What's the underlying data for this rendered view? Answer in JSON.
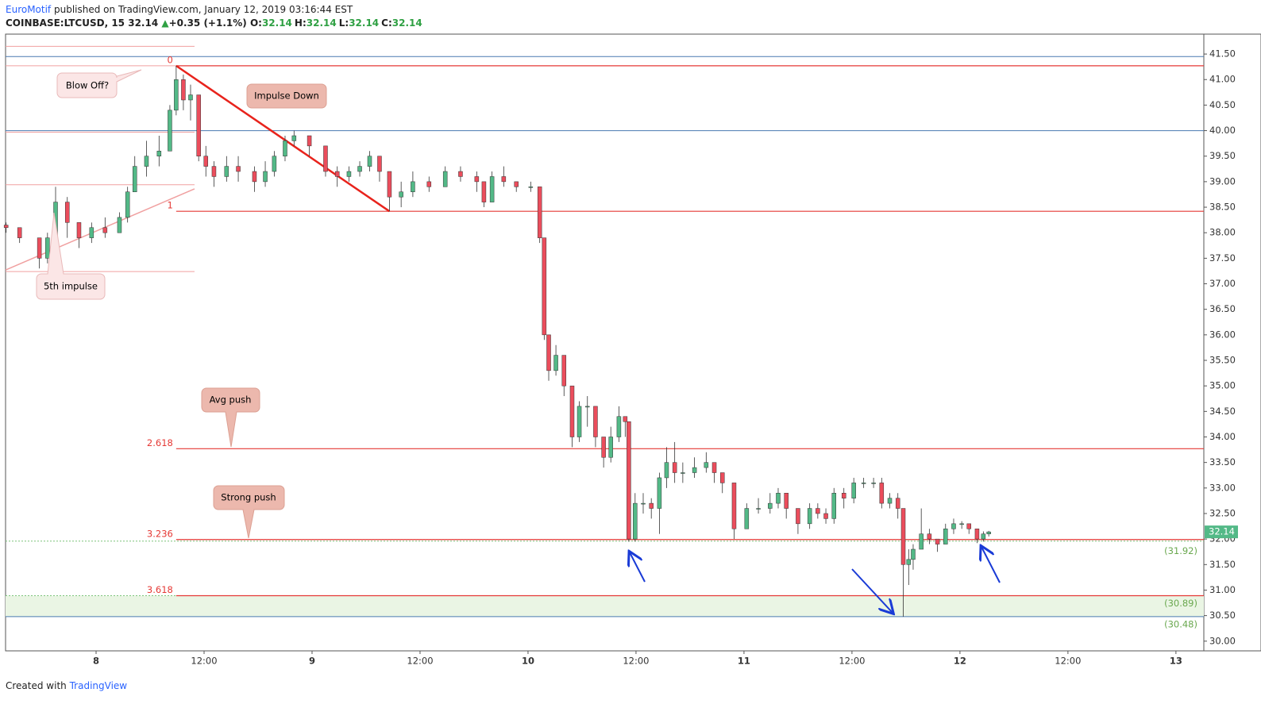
{
  "header": {
    "author": "EuroMotif",
    "published": "published on TradingView.com, January 12, 2019 03:16:44 EST",
    "symbol": "COINBASE:LTCUSD, 15",
    "last": "32.14",
    "change": "+0.35 (+1.1%)",
    "ohlc": [
      {
        "k": "O:",
        "v": "32.14"
      },
      {
        "k": "H:",
        "v": "32.14"
      },
      {
        "k": "L:",
        "v": "32.14"
      },
      {
        "k": "C:",
        "v": "32.14"
      }
    ]
  },
  "footer": {
    "created": "Created with",
    "brand": "TradingView"
  },
  "annotations": [
    "Blow Off?",
    "Impulse Down",
    "5th impulse",
    "Avg push",
    "Strong push"
  ],
  "chart_data": {
    "type": "candlestick",
    "up_color": "#53b987",
    "down_color": "#eb4d5c",
    "xlim": [
      -10.06,
      123.1
    ],
    "ylim": [
      29.81,
      41.89
    ],
    "xticks": [
      {
        "value": 0,
        "label": "8"
      },
      {
        "value": 12,
        "label": "12:00"
      },
      {
        "value": 24,
        "label": "9"
      },
      {
        "value": 36,
        "label": "12:00"
      },
      {
        "value": 48,
        "label": "10"
      },
      {
        "value": 60,
        "label": "12:00"
      },
      {
        "value": 72,
        "label": "11"
      },
      {
        "value": 84,
        "label": "12:00"
      },
      {
        "value": 96,
        "label": "12"
      },
      {
        "value": 108,
        "label": "12:00"
      },
      {
        "value": 120,
        "label": "13"
      }
    ],
    "yticks": [
      {
        "value": 30,
        "label": "30.00"
      },
      {
        "value": 30.5,
        "label": "30.50"
      },
      {
        "value": 31,
        "label": "31.00"
      },
      {
        "value": 31.5,
        "label": "31.50"
      },
      {
        "value": 32,
        "label": "32.00"
      },
      {
        "value": 32.5,
        "label": "32.50"
      },
      {
        "value": 33,
        "label": "33.00"
      },
      {
        "value": 33.5,
        "label": "33.50"
      },
      {
        "value": 34,
        "label": "34.00"
      },
      {
        "value": 34.5,
        "label": "34.50"
      },
      {
        "value": 35,
        "label": "35.00"
      },
      {
        "value": 35.5,
        "label": "35.50"
      },
      {
        "value": 36,
        "label": "36.00"
      },
      {
        "value": 36.5,
        "label": "36.50"
      },
      {
        "value": 37,
        "label": "37.00"
      },
      {
        "value": 37.5,
        "label": "37.50"
      },
      {
        "value": 38,
        "label": "38.00"
      },
      {
        "value": 38.5,
        "label": "38.50"
      },
      {
        "value": 39,
        "label": "39.00"
      },
      {
        "value": 39.5,
        "label": "39.50"
      },
      {
        "value": 40,
        "label": "40.00"
      },
      {
        "value": 40.5,
        "label": "40.50"
      },
      {
        "value": 41,
        "label": "41.00"
      },
      {
        "value": 41.5,
        "label": "41.50"
      }
    ],
    "x": [
      -10,
      -8.5,
      -6.3,
      -5.4,
      -4.5,
      -3.2,
      -1.9,
      -0.5,
      1,
      2.6,
      3.5,
      4.3,
      5.6,
      7,
      8.2,
      8.9,
      9.7,
      10.5,
      11.4,
      12.2,
      13.1,
      14.5,
      15.8,
      17.6,
      18.8,
      19.8,
      21,
      22,
      23.7,
      25.5,
      26.8,
      28.1,
      29.3,
      30.4,
      31.5,
      32.6,
      33.9,
      35.2,
      37,
      38.8,
      40.5,
      42.3,
      43.1,
      44,
      45.3,
      46.7,
      48.3,
      49.3,
      49.8,
      50.3,
      51.1,
      52,
      52.9,
      53.7,
      54.6,
      55.5,
      56.4,
      57.2,
      58.1,
      58.8,
      59.2,
      59.9,
      60.8,
      61.7,
      62.6,
      63.4,
      64.3,
      65.2,
      66.5,
      67.8,
      68.7,
      69.6,
      70.9,
      72.3,
      73.6,
      74.9,
      75.8,
      76.7,
      78,
      79.3,
      80.2,
      81.1,
      82,
      83.1,
      84.2,
      85.3,
      86.4,
      87.3,
      88.2,
      89.1,
      89.7,
      90.3,
      90.8,
      91.7,
      92.6,
      93.5,
      94.4,
      95.3,
      96.2,
      97,
      97.9,
      98.6,
      99.2
    ],
    "open": [
      38.15,
      38.1,
      37.9,
      37.5,
      37.9,
      38.6,
      38.2,
      37.9,
      38.1,
      38.0,
      38.3,
      38.8,
      39.3,
      39.5,
      39.6,
      40.4,
      41.0,
      40.6,
      40.7,
      39.5,
      39.3,
      39.1,
      39.3,
      39.2,
      39.0,
      39.2,
      39.5,
      39.8,
      39.9,
      39.7,
      39.2,
      39.1,
      39.2,
      39.3,
      39.5,
      39.2,
      38.7,
      38.8,
      39.0,
      38.9,
      39.2,
      39.1,
      39.0,
      38.6,
      39.1,
      39.0,
      38.9,
      38.9,
      37.9,
      36.0,
      35.3,
      35.6,
      35.0,
      34.0,
      34.6,
      34.6,
      34.0,
      33.6,
      34.0,
      34.4,
      34.3,
      32.0,
      32.7,
      32.7,
      32.6,
      33.2,
      33.5,
      33.3,
      33.3,
      33.4,
      33.5,
      33.3,
      33.1,
      32.2,
      32.6,
      32.6,
      32.7,
      32.9,
      32.6,
      32.3,
      32.6,
      32.5,
      32.4,
      32.9,
      32.8,
      33.1,
      33.1,
      33.1,
      32.7,
      32.8,
      32.6,
      31.5,
      31.6,
      31.8,
      32.1,
      32.0,
      31.9,
      32.2,
      32.3,
      32.3,
      32.2,
      32.0,
      32.1
    ],
    "high": [
      38.2,
      38.1,
      37.9,
      38.0,
      38.9,
      38.7,
      38.2,
      38.2,
      38.3,
      38.4,
      38.9,
      39.5,
      39.8,
      39.9,
      40.5,
      41.27,
      41.1,
      40.9,
      40.7,
      39.7,
      39.4,
      39.5,
      39.5,
      39.3,
      39.4,
      39.6,
      39.9,
      40.0,
      39.9,
      39.7,
      39.3,
      39.3,
      39.4,
      39.6,
      39.5,
      39.2,
      39.0,
      39.2,
      39.1,
      39.3,
      39.3,
      39.2,
      39.0,
      39.2,
      39.3,
      39.0,
      39.0,
      38.9,
      37.9,
      36.0,
      35.8,
      35.6,
      35.0,
      34.7,
      34.8,
      34.6,
      34.0,
      34.2,
      34.6,
      34.4,
      34.3,
      32.9,
      32.9,
      32.8,
      33.3,
      33.8,
      33.9,
      33.5,
      33.6,
      33.7,
      33.5,
      33.3,
      33.1,
      32.7,
      32.8,
      32.9,
      33.0,
      32.9,
      32.6,
      32.7,
      32.7,
      32.6,
      33.0,
      33.0,
      33.2,
      33.2,
      33.2,
      33.2,
      32.9,
      32.9,
      32.6,
      31.8,
      31.9,
      32.6,
      32.2,
      32.0,
      32.3,
      32.4,
      32.35,
      32.3,
      32.2,
      32.15,
      32.16
    ],
    "low": [
      38.0,
      37.8,
      37.3,
      37.4,
      37.8,
      37.9,
      37.7,
      37.8,
      37.9,
      38.0,
      38.2,
      38.8,
      39.1,
      39.3,
      39.6,
      40.3,
      40.4,
      40.2,
      39.4,
      39.1,
      38.9,
      39.0,
      39.0,
      38.8,
      38.9,
      39.1,
      39.4,
      39.7,
      39.5,
      39.1,
      38.9,
      39.0,
      39.1,
      39.2,
      39.0,
      38.42,
      38.5,
      38.7,
      38.8,
      38.9,
      39.0,
      38.8,
      38.5,
      38.6,
      38.9,
      38.8,
      38.8,
      37.8,
      35.9,
      35.1,
      35.2,
      34.8,
      33.8,
      33.9,
      34.2,
      33.8,
      33.4,
      33.5,
      33.9,
      34.0,
      31.95,
      31.95,
      32.5,
      32.4,
      32.1,
      33.0,
      33.1,
      33.1,
      33.2,
      33.3,
      33.1,
      32.9,
      32.0,
      32.2,
      32.5,
      32.5,
      32.6,
      32.4,
      32.1,
      32.2,
      32.4,
      32.3,
      32.3,
      32.6,
      32.7,
      33.0,
      33.0,
      32.6,
      32.6,
      32.4,
      30.48,
      31.1,
      31.4,
      31.8,
      31.9,
      31.75,
      31.9,
      32.1,
      32.2,
      32.1,
      31.92,
      31.95,
      32.05
    ],
    "close": [
      38.1,
      37.9,
      37.5,
      37.9,
      38.6,
      38.2,
      37.9,
      38.1,
      38.0,
      38.3,
      38.8,
      39.3,
      39.5,
      39.6,
      40.4,
      41.0,
      40.6,
      40.7,
      39.5,
      39.3,
      39.1,
      39.3,
      39.2,
      39.0,
      39.2,
      39.5,
      39.8,
      39.9,
      39.7,
      39.2,
      39.1,
      39.2,
      39.3,
      39.5,
      39.2,
      38.7,
      38.8,
      39.0,
      38.9,
      39.2,
      39.1,
      39.0,
      38.6,
      39.1,
      39.0,
      38.9,
      38.9,
      37.9,
      36.0,
      35.3,
      35.6,
      35.0,
      34.0,
      34.6,
      34.6,
      34.0,
      33.6,
      34.0,
      34.4,
      34.3,
      32.0,
      32.7,
      32.7,
      32.6,
      33.2,
      33.5,
      33.3,
      33.3,
      33.4,
      33.5,
      33.3,
      33.1,
      32.2,
      32.6,
      32.6,
      32.7,
      32.9,
      32.6,
      32.3,
      32.6,
      32.5,
      32.4,
      32.9,
      32.8,
      33.1,
      33.1,
      33.1,
      32.7,
      32.8,
      32.6,
      31.5,
      31.6,
      31.8,
      32.1,
      32.0,
      31.9,
      32.2,
      32.3,
      32.3,
      32.2,
      32.0,
      32.1,
      32.14
    ],
    "last_price": 32.14,
    "last_color": "#53b987",
    "zone": {
      "from": 30.48,
      "to": 30.89,
      "color": "#eaf5e4"
    },
    "hlines": [
      {
        "value": 41.45,
        "color": "#4a7ab0",
        "x": [
          -10.06,
          123.1
        ]
      },
      {
        "value": 40.0,
        "color": "#4a7ab0",
        "x": [
          -10.06,
          123.1
        ]
      },
      {
        "value": 30.48,
        "color": "#4a7ab0",
        "x": [
          -10.06,
          123.1
        ]
      },
      {
        "value": 41.65,
        "color": "#f0a0a0",
        "x": [
          -10.06,
          10.94
        ]
      },
      {
        "value": 41.27,
        "color": "#f0a0a0",
        "x": [
          -10.06,
          8.9
        ]
      },
      {
        "value": 39.97,
        "color": "#f0a0a0",
        "x": [
          -10.06,
          10.94
        ]
      },
      {
        "value": 38.94,
        "color": "#f0a0a0",
        "x": [
          -10.06,
          10.94
        ]
      },
      {
        "value": 37.24,
        "color": "#f0a0a0",
        "x": [
          -10.06,
          10.94
        ]
      },
      {
        "value": 31.96,
        "color": "#7cc47a",
        "x": [
          -10.06,
          123.1
        ],
        "style": "dotted"
      },
      {
        "value": 30.89,
        "color": "#7cc47a",
        "x": [
          -10.06,
          8.9
        ],
        "style": "dotted"
      }
    ],
    "levels": [
      {
        "label": "0",
        "value": 41.27
      },
      {
        "label": "1",
        "value": 38.42
      },
      {
        "label": "2.618",
        "value": 33.77
      },
      {
        "label": "3.236",
        "value": 31.99
      },
      {
        "label": "3.618",
        "value": 30.89
      }
    ],
    "level_color": "#e53935",
    "price_labels": [
      {
        "label": "(31.92)",
        "value": 31.92
      },
      {
        "label": "(30.89)",
        "value": 30.89
      },
      {
        "label": "(30.48)",
        "value": 30.48
      }
    ],
    "price_label_color": "#6aa84f",
    "trendlines": [
      {
        "x": [
          8.9,
          32.6
        ],
        "y": [
          41.27,
          38.42
        ],
        "color": "#e8231c",
        "width": 2.5
      },
      {
        "x": [
          -10.06,
          10.94
        ],
        "y": [
          37.27,
          38.86
        ],
        "color": "#f0a0a0",
        "width": 1.5
      }
    ]
  }
}
